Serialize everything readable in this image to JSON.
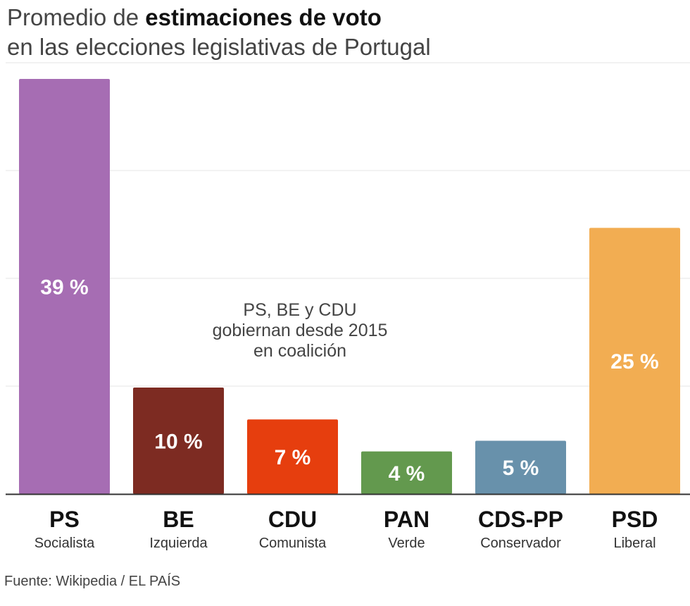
{
  "title": {
    "prefix": "Promedio de ",
    "bold": "estimaciones de voto",
    "line2": "en las elecciones legislativas de Portugal"
  },
  "source": "Fuente: Wikipedia / EL PAÍS",
  "chart_data": {
    "type": "bar",
    "title": "Promedio de estimaciones de voto en las elecciones legislativas de Portugal",
    "categories": [
      "PS",
      "BE",
      "CDU",
      "PAN",
      "CDS-PP",
      "PSD"
    ],
    "subcategories": [
      "Socialista",
      "Izquierda",
      "Comunista",
      "Verde",
      "Conservador",
      "Liberal"
    ],
    "values": [
      39,
      10,
      7,
      4,
      5,
      25
    ],
    "value_labels": [
      "39 %",
      "10 %",
      "7 %",
      "4 %",
      "5 %",
      "25 %"
    ],
    "colors": [
      "#a66db3",
      "#7d2b22",
      "#e63e0e",
      "#63994e",
      "#6891ab",
      "#f2ad52"
    ],
    "ylim": [
      0,
      39
    ],
    "grid": true,
    "xlabel": "",
    "ylabel": "",
    "annotation": [
      "PS, BE y CDU",
      "gobiernan desde 2015",
      "en coalición"
    ]
  }
}
